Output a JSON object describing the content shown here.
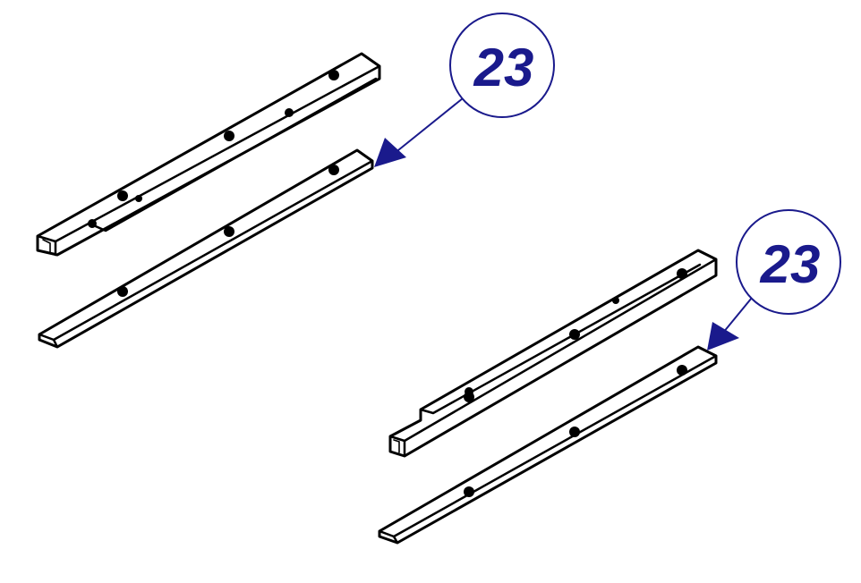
{
  "callouts": [
    {
      "label": "23"
    },
    {
      "label": "23"
    }
  ],
  "colors": {
    "callout": "#1a1a8c",
    "line": "#000000",
    "background": "#ffffff"
  }
}
